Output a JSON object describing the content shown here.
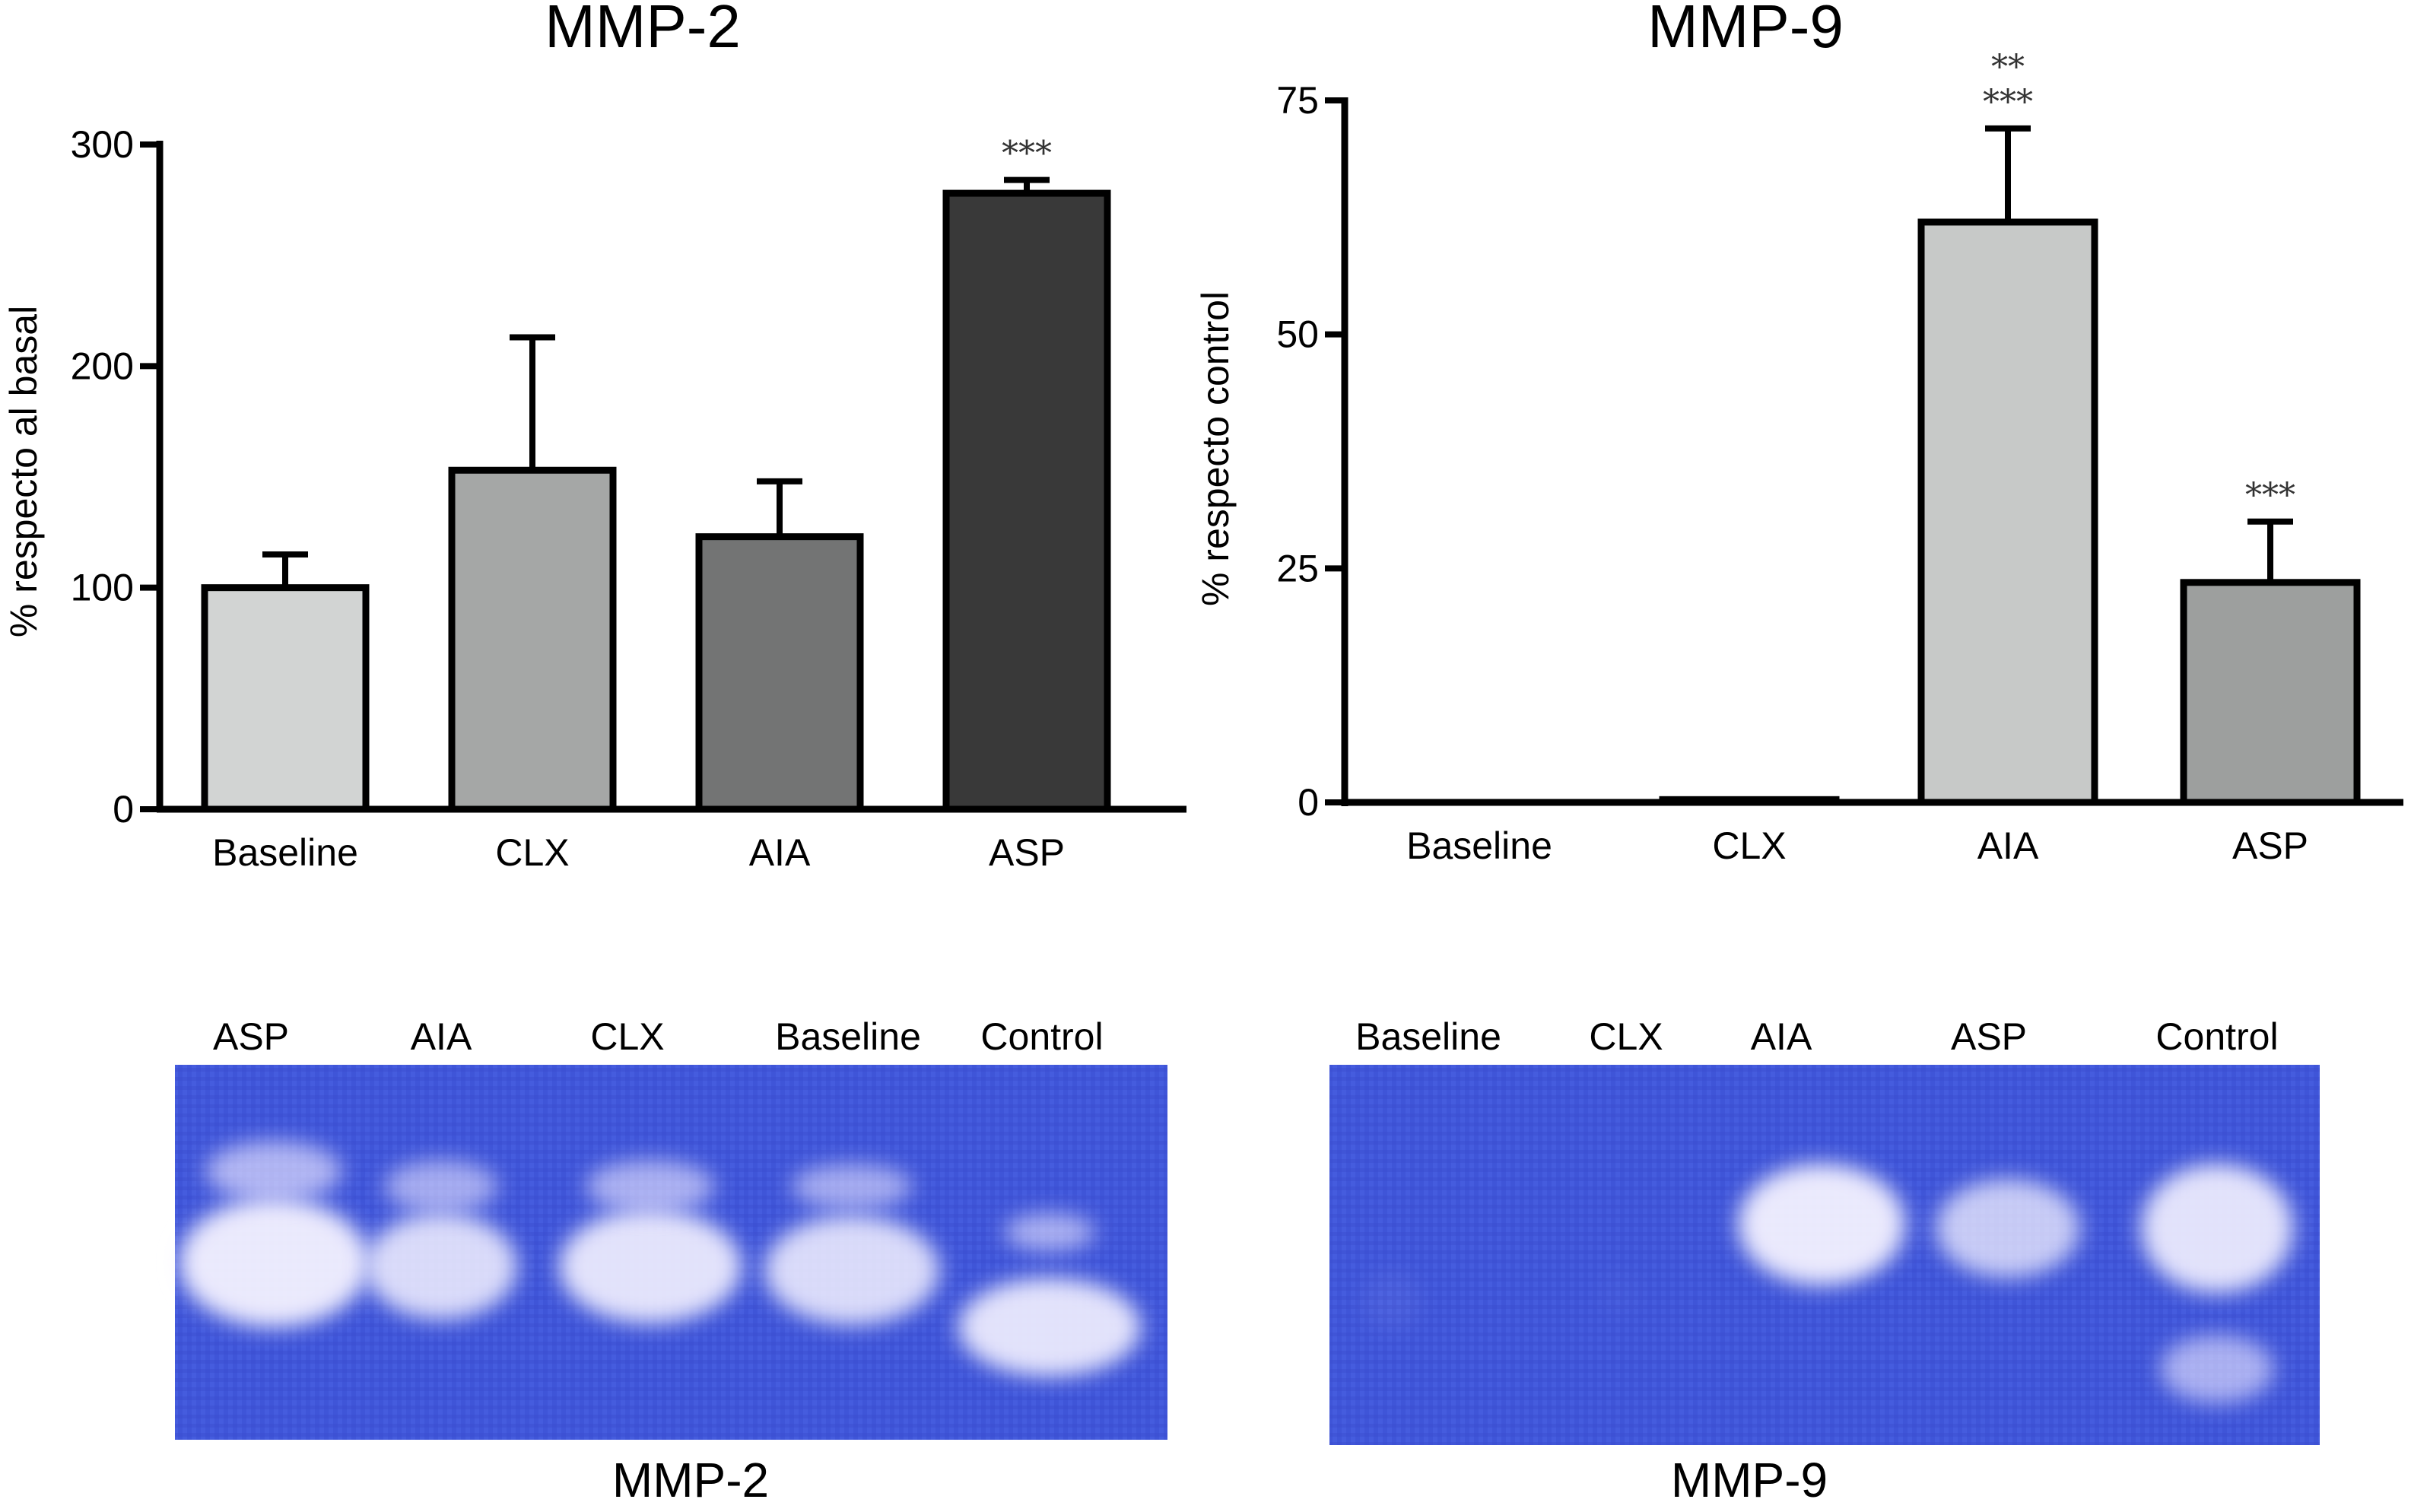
{
  "chart_data": [
    {
      "type": "bar",
      "title": "MMP-2",
      "ylabel": "% respecto al basal",
      "categories": [
        "Baseline",
        "CLX",
        "AIA",
        "ASP"
      ],
      "values": [
        100,
        153,
        123,
        278
      ],
      "errors": [
        15,
        60,
        25,
        6
      ],
      "ylim": [
        0,
        300
      ],
      "yticks": [
        0,
        100,
        200,
        300
      ],
      "bar_colors": [
        "#d2d4d3",
        "#a5a7a6",
        "#737474",
        "#393939"
      ],
      "significance": [
        "",
        "",
        "",
        "***"
      ]
    },
    {
      "type": "bar",
      "title": "MMP-9",
      "ylabel": "% respecto control",
      "categories": [
        "Baseline",
        "CLX",
        "AIA",
        "ASP"
      ],
      "values": [
        0,
        0.3,
        62,
        23.5
      ],
      "errors": [
        0,
        0,
        10,
        6.5
      ],
      "ylim": [
        0,
        75
      ],
      "yticks": [
        0,
        25,
        50,
        75
      ],
      "bar_colors": [
        "#ffffff",
        "#ffffff",
        "#c7c9c8",
        "#9d9f9e"
      ],
      "significance": [
        "",
        "",
        "**\n***",
        "***"
      ]
    }
  ],
  "gels": [
    {
      "caption": "MMP-2",
      "lanes": [
        "ASP",
        "AIA",
        "CLX",
        "Baseline",
        "Control"
      ],
      "band_intensity": [
        0.95,
        0.85,
        0.9,
        0.85,
        0.9
      ]
    },
    {
      "caption": "MMP-9",
      "lanes": [
        "Baseline",
        "CLX",
        "AIA",
        "ASP",
        "Control"
      ],
      "band_intensity": [
        0.05,
        0.02,
        0.95,
        0.75,
        0.9
      ]
    }
  ]
}
